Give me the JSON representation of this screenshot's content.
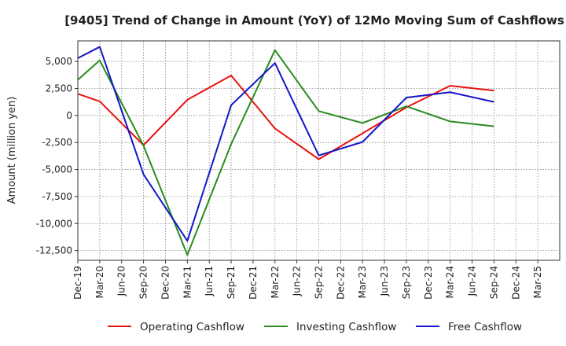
{
  "chart_data": {
    "type": "line",
    "title": "[9405]  Trend of Change in Amount (YoY) of 12Mo Moving Sum of Cashflows",
    "xlabel": "",
    "ylabel": "Amount (million yen)",
    "ylim": [
      -13400,
      6900
    ],
    "yticks": [
      5000,
      2500,
      0,
      -2500,
      -5000,
      -7500,
      -10000,
      -12500
    ],
    "ytick_labels": [
      "5,000",
      "2,500",
      "0",
      "-2,500",
      "-5,000",
      "-7,500",
      "-10,000",
      "-12,500"
    ],
    "categories": [
      "Dec-19",
      "Mar-20",
      "Jun-20",
      "Sep-20",
      "Dec-20",
      "Mar-21",
      "Jun-21",
      "Sep-21",
      "Dec-21",
      "Mar-22",
      "Jun-22",
      "Sep-22",
      "Dec-22",
      "Mar-23",
      "Jun-23",
      "Sep-23",
      "Dec-23",
      "Mar-24",
      "Jun-24",
      "Sep-24",
      "Dec-24",
      "Mar-25"
    ],
    "grid": true,
    "legend_position": "bottom",
    "series": [
      {
        "name": "Operating Cashflow",
        "color": "#e8130f",
        "points": [
          {
            "x": "Dec-19",
            "y": 2000
          },
          {
            "x": "Mar-20",
            "y": 1300
          },
          {
            "x": "Sep-20",
            "y": -2750
          },
          {
            "x": "Mar-21",
            "y": 1450
          },
          {
            "x": "Sep-21",
            "y": 3700
          },
          {
            "x": "Mar-22",
            "y": -1200
          },
          {
            "x": "Sep-22",
            "y": -4050
          },
          {
            "x": "Mar-23",
            "y": -1650
          },
          {
            "x": "Sep-23",
            "y": 750
          },
          {
            "x": "Mar-24",
            "y": 2750
          },
          {
            "x": "Sep-24",
            "y": 2300
          }
        ]
      },
      {
        "name": "Investing Cashflow",
        "color": "#2a8a1e",
        "points": [
          {
            "x": "Dec-19",
            "y": 3300
          },
          {
            "x": "Mar-20",
            "y": 5100
          },
          {
            "x": "Sep-20",
            "y": -2800
          },
          {
            "x": "Mar-21",
            "y": -12900
          },
          {
            "x": "Sep-21",
            "y": -2650
          },
          {
            "x": "Mar-22",
            "y": 6050
          },
          {
            "x": "Sep-22",
            "y": 400
          },
          {
            "x": "Mar-23",
            "y": -700
          },
          {
            "x": "Sep-23",
            "y": 850
          },
          {
            "x": "Mar-24",
            "y": -550
          },
          {
            "x": "Sep-24",
            "y": -1000
          }
        ]
      },
      {
        "name": "Free Cashflow",
        "color": "#1416c8",
        "points": [
          {
            "x": "Dec-19",
            "y": 5300
          },
          {
            "x": "Mar-20",
            "y": 6350
          },
          {
            "x": "Sep-20",
            "y": -5450
          },
          {
            "x": "Mar-21",
            "y": -11600
          },
          {
            "x": "Sep-21",
            "y": 950
          },
          {
            "x": "Mar-22",
            "y": 4850
          },
          {
            "x": "Sep-22",
            "y": -3700
          },
          {
            "x": "Mar-23",
            "y": -2450
          },
          {
            "x": "Sep-23",
            "y": 1650
          },
          {
            "x": "Mar-24",
            "y": 2150
          },
          {
            "x": "Sep-24",
            "y": 1250
          }
        ]
      }
    ]
  }
}
